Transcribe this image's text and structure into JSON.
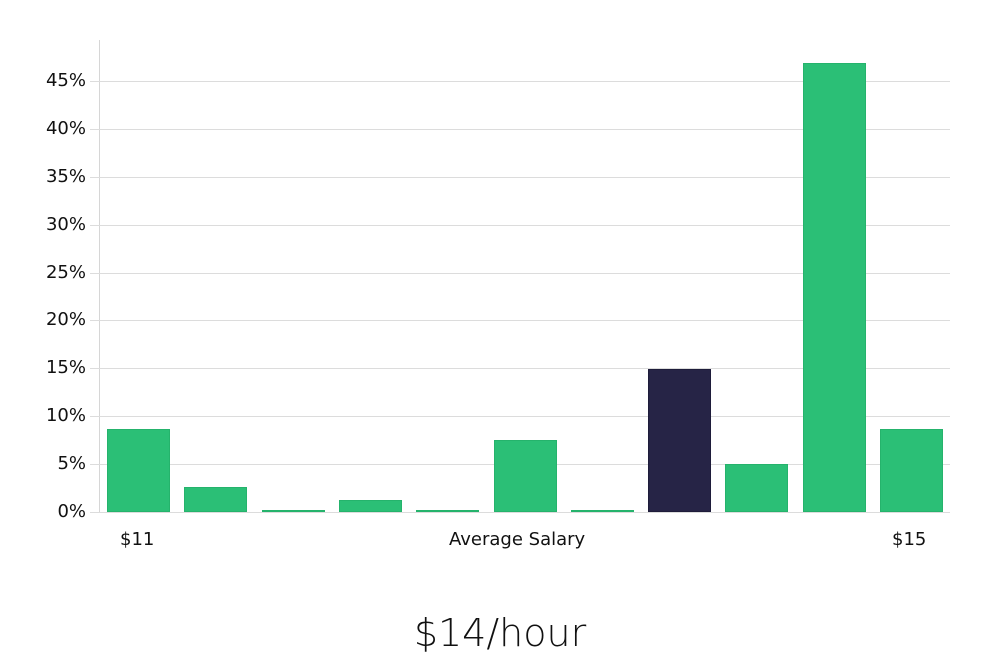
{
  "chart_data": {
    "type": "bar",
    "title": "$14/hour",
    "xlabel": "Average Salary",
    "ylabel": "",
    "categories": [
      "bin1",
      "bin2",
      "bin3",
      "bin4",
      "bin5",
      "bin6",
      "bin7",
      "bin8",
      "bin9",
      "bin10",
      "bin11"
    ],
    "x_tick_labels": {
      "left": "$11",
      "center": "Average Salary",
      "right": "$15"
    },
    "values": [
      8.7,
      2.6,
      0.1,
      1.3,
      0.1,
      7.5,
      0.1,
      14.9,
      5.0,
      46.9,
      8.7
    ],
    "highlight_index": 7,
    "ylim": [
      0,
      50
    ],
    "yticks": [
      "0%",
      "5%",
      "10%",
      "15%",
      "20%",
      "25%",
      "30%",
      "35%",
      "40%",
      "45%"
    ],
    "grid": true,
    "colors": {
      "bar": "#2bbf76",
      "highlight": "#262446",
      "grid": "#dcdcdc"
    }
  },
  "labels": {
    "x_left": "$11",
    "x_center": "Average Salary",
    "x_right": "$15",
    "big_title": "$14/hour"
  }
}
